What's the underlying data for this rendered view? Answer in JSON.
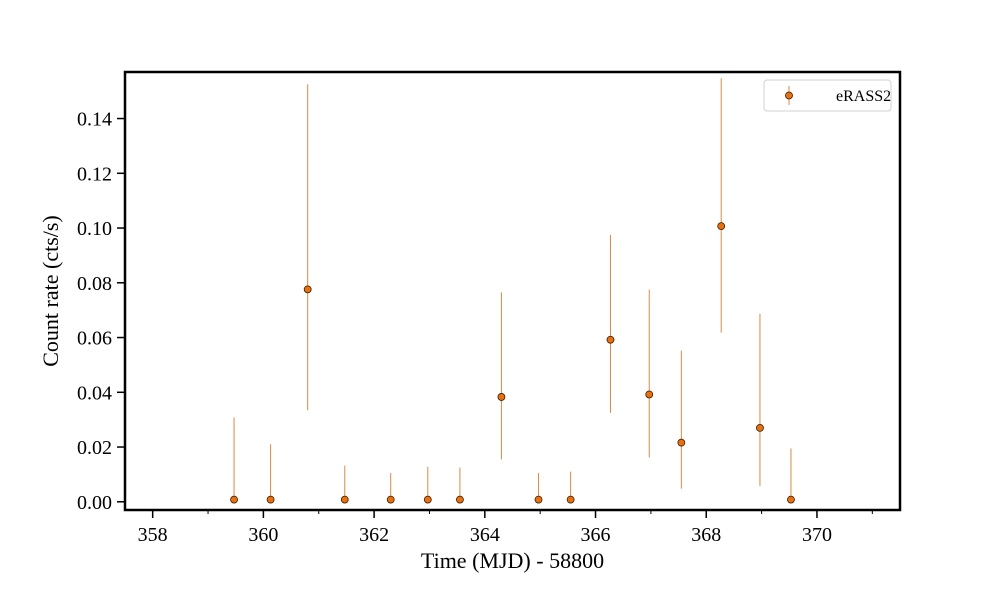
{
  "chart_data": {
    "type": "scatter",
    "title": "",
    "xlabel": "Time (MJD) - 58800",
    "ylabel": "Count rate (cts/s)",
    "xlim": [
      357.5,
      371.5
    ],
    "ylim": [
      -0.003,
      0.157
    ],
    "xticks": [
      358,
      360,
      362,
      364,
      366,
      368,
      370
    ],
    "yticks": [
      0.0,
      0.02,
      0.04,
      0.06,
      0.08,
      0.1,
      0.12,
      0.14
    ],
    "ytick_labels": [
      "0.00",
      "0.02",
      "0.04",
      "0.06",
      "0.08",
      "0.10",
      "0.12",
      "0.14"
    ],
    "grid": false,
    "legend_position": "top-right",
    "series": [
      {
        "name": "eRASS2",
        "color": "#e8700e",
        "errorbar_color": "#d98a45",
        "points": [
          {
            "x": 359.47,
            "y": 0.0008,
            "y_low": 0.0008,
            "y_high": 0.0308
          },
          {
            "x": 360.13,
            "y": 0.0008,
            "y_low": 0.0008,
            "y_high": 0.021
          },
          {
            "x": 360.8,
            "y": 0.0776,
            "y_low": 0.0335,
            "y_high": 0.1525
          },
          {
            "x": 361.47,
            "y": 0.0008,
            "y_low": 0.0008,
            "y_high": 0.0132
          },
          {
            "x": 362.3,
            "y": 0.0008,
            "y_low": 0.0008,
            "y_high": 0.0105
          },
          {
            "x": 362.97,
            "y": 0.0008,
            "y_low": 0.0008,
            "y_high": 0.0128
          },
          {
            "x": 363.55,
            "y": 0.0008,
            "y_low": 0.0008,
            "y_high": 0.0125
          },
          {
            "x": 364.3,
            "y": 0.0383,
            "y_low": 0.0155,
            "y_high": 0.0765
          },
          {
            "x": 364.97,
            "y": 0.0008,
            "y_low": 0.0008,
            "y_high": 0.0105
          },
          {
            "x": 365.55,
            "y": 0.0008,
            "y_low": 0.0008,
            "y_high": 0.011
          },
          {
            "x": 366.27,
            "y": 0.0592,
            "y_low": 0.0325,
            "y_high": 0.0975
          },
          {
            "x": 366.97,
            "y": 0.0392,
            "y_low": 0.0162,
            "y_high": 0.0775
          },
          {
            "x": 367.55,
            "y": 0.0216,
            "y_low": 0.0048,
            "y_high": 0.0552
          },
          {
            "x": 368.27,
            "y": 0.1007,
            "y_low": 0.0618,
            "y_high": 0.1547
          },
          {
            "x": 368.97,
            "y": 0.027,
            "y_low": 0.0058,
            "y_high": 0.0687
          },
          {
            "x": 369.53,
            "y": 0.0008,
            "y_low": 0.0008,
            "y_high": 0.0195
          }
        ]
      }
    ]
  }
}
